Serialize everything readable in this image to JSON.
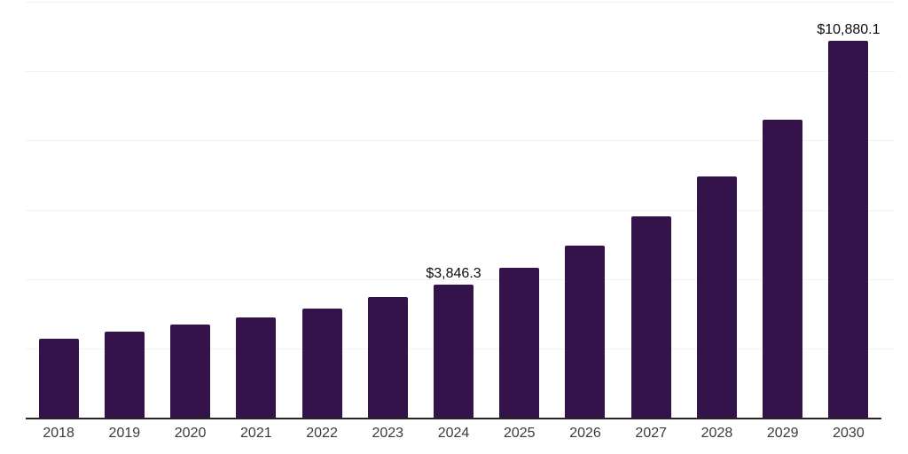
{
  "chart_data": {
    "type": "bar",
    "title": "",
    "xlabel": "",
    "ylabel": "",
    "categories": [
      "2018",
      "2019",
      "2020",
      "2021",
      "2022",
      "2023",
      "2024",
      "2025",
      "2026",
      "2027",
      "2028",
      "2029",
      "2030"
    ],
    "values": [
      2290,
      2490,
      2680,
      2900,
      3160,
      3470,
      3846.3,
      4330,
      4970,
      5810,
      6960,
      8590,
      10880.1
    ],
    "bar_labels": [
      "",
      "",
      "",
      "",
      "",
      "",
      "$3,846.3",
      "",
      "",
      "",
      "",
      "",
      "$10,880.1"
    ],
    "ylim": [
      0,
      12000
    ],
    "gridline_step": 2000,
    "grid": "horizontal",
    "legend": "none",
    "y_axis_tick_labels_visible": false
  },
  "style": {
    "bar_color": "#331349",
    "gridline_color": "#f2f2f2",
    "axis_line_color": "#262626",
    "tick_label_color": "#3a3a3a",
    "data_label_color": "#0d0d0d",
    "background": "#ffffff"
  }
}
